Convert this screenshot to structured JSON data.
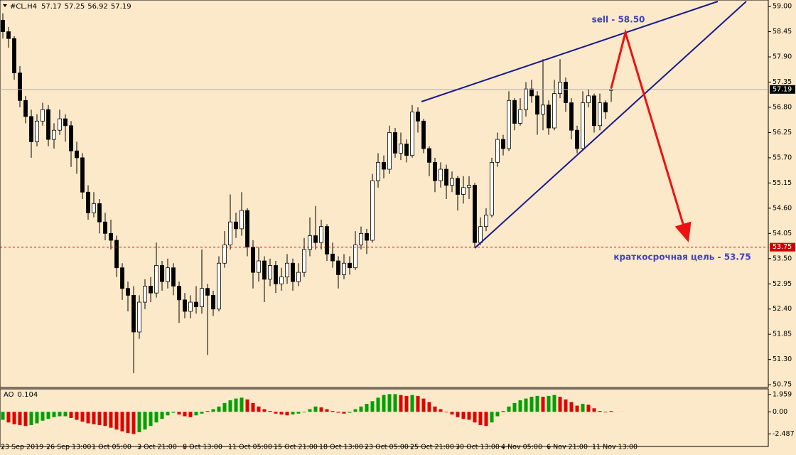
{
  "chart_data": [
    {
      "type": "candlestick",
      "title": "#CL,H4",
      "up_color": "#ffffff",
      "down_color": "#000000",
      "edge_color": "#000000",
      "categories": [
        "23 Sep 2019",
        null,
        null,
        null,
        null,
        null,
        null,
        null,
        "26 Sep 13:00",
        null,
        null,
        null,
        null,
        null,
        null,
        null,
        "1 Oct 05:00",
        null,
        null,
        null,
        null,
        null,
        null,
        null,
        "3 Oct 21:00",
        null,
        null,
        null,
        null,
        null,
        null,
        null,
        "8 Oct 13:00",
        null,
        null,
        null,
        null,
        null,
        null,
        null,
        "11 Oct 05:00",
        null,
        null,
        null,
        null,
        null,
        null,
        null,
        "15 Oct 21:00",
        null,
        null,
        null,
        null,
        null,
        null,
        null,
        "18 Oct 13:00",
        null,
        null,
        null,
        null,
        null,
        null,
        null,
        "23 Oct 05:00",
        null,
        null,
        null,
        null,
        null,
        null,
        null,
        "25 Oct 21:00",
        null,
        null,
        null,
        null,
        null,
        null,
        null,
        "30 Oct 13:00",
        null,
        null,
        null,
        null,
        null,
        null,
        null,
        "4 Nov 05:00",
        null,
        null,
        null,
        null,
        null,
        null,
        null,
        "6 Nov 21:00",
        null,
        null,
        null,
        null,
        null,
        null,
        null,
        "11 Nov 13:00",
        null,
        null,
        null
      ],
      "open": [
        58.7,
        58.45,
        58.3,
        57.55,
        56.95,
        56.6,
        56.05,
        56.5,
        56.75,
        56.1,
        56.3,
        56.55,
        56.4,
        55.85,
        55.7,
        54.95,
        54.5,
        54.7,
        54.3,
        54.05,
        53.9,
        53.3,
        52.85,
        52.7,
        51.9,
        52.55,
        52.9,
        52.75,
        53.35,
        53.0,
        53.3,
        52.9,
        52.6,
        52.35,
        52.55,
        52.45,
        52.85,
        52.7,
        52.4,
        53.4,
        53.8,
        54.3,
        54.15,
        54.55,
        53.75,
        53.2,
        53.45,
        53.05,
        53.35,
        52.95,
        53.1,
        53.4,
        53.0,
        53.2,
        53.7,
        54.0,
        53.85,
        54.2,
        53.6,
        53.45,
        53.15,
        53.4,
        53.3,
        53.8,
        54.05,
        53.9,
        55.2,
        55.6,
        55.45,
        56.25,
        55.8,
        56.0,
        55.75,
        56.7,
        56.5,
        55.9,
        55.6,
        55.2,
        55.45,
        55.1,
        55.25,
        54.9,
        55.05,
        55.1,
        53.85,
        54.2,
        54.45,
        55.6,
        56.1,
        55.9,
        56.95,
        56.45,
        56.75,
        57.2,
        57.05,
        56.65,
        56.85,
        56.35,
        57.1,
        57.35,
        56.9,
        56.3,
        55.9,
        56.9,
        57.05,
        56.4,
        56.9,
        57.17
      ],
      "high": [
        58.85,
        58.55,
        58.35,
        57.7,
        57.05,
        56.75,
        56.65,
        56.9,
        56.85,
        56.45,
        56.75,
        56.65,
        56.5,
        56.05,
        55.8,
        55.1,
        54.95,
        54.8,
        54.5,
        54.35,
        54.0,
        53.4,
        53.0,
        52.9,
        52.7,
        53.05,
        53.1,
        53.85,
        53.45,
        53.5,
        53.4,
        53.0,
        52.75,
        52.7,
        52.9,
        53.7,
        52.95,
        52.8,
        53.55,
        54.1,
        54.9,
        54.5,
        54.95,
        54.6,
        53.9,
        53.75,
        53.55,
        53.5,
        53.45,
        53.3,
        53.6,
        53.5,
        53.4,
        53.95,
        54.4,
        54.65,
        54.35,
        54.25,
        53.85,
        53.55,
        53.6,
        53.55,
        54.1,
        54.2,
        54.15,
        55.35,
        55.8,
        55.75,
        56.4,
        56.35,
        56.25,
        56.1,
        56.85,
        56.8,
        56.55,
        55.95,
        55.7,
        55.6,
        55.55,
        55.4,
        55.3,
        55.3,
        55.3,
        55.15,
        54.4,
        54.6,
        55.7,
        56.25,
        56.2,
        57.15,
        57.0,
        57.0,
        57.35,
        57.4,
        57.15,
        57.85,
        56.95,
        57.4,
        57.85,
        57.45,
        57.0,
        56.4,
        57.15,
        57.2,
        57.1,
        57.1,
        56.95,
        57.25
      ],
      "low": [
        58.3,
        58.1,
        57.4,
        56.8,
        56.45,
        55.7,
        55.95,
        56.4,
        55.95,
        55.9,
        56.2,
        56.05,
        55.5,
        55.35,
        54.8,
        54.35,
        54.4,
        54.05,
        53.9,
        53.7,
        53.1,
        52.6,
        52.35,
        51.0,
        51.75,
        52.4,
        52.55,
        52.65,
        52.8,
        52.85,
        52.7,
        52.1,
        52.2,
        52.2,
        52.3,
        52.3,
        51.4,
        52.25,
        52.35,
        53.3,
        53.7,
        53.95,
        54.0,
        53.55,
        52.85,
        53.0,
        52.55,
        52.9,
        52.75,
        52.8,
        52.95,
        52.8,
        52.9,
        53.1,
        53.55,
        53.7,
        53.7,
        53.45,
        53.3,
        52.85,
        53.05,
        53.15,
        53.25,
        53.7,
        53.6,
        53.85,
        55.05,
        55.25,
        55.35,
        55.7,
        55.65,
        55.6,
        55.7,
        56.25,
        55.8,
        55.3,
        54.95,
        55.05,
        54.8,
        54.95,
        54.55,
        54.7,
        54.8,
        53.75,
        53.8,
        54.1,
        54.4,
        55.5,
        55.75,
        55.85,
        56.3,
        56.4,
        56.6,
        56.9,
        56.2,
        56.3,
        56.2,
        56.3,
        57.0,
        56.7,
        56.1,
        55.8,
        55.85,
        56.8,
        56.25,
        56.3,
        56.55,
        56.92
      ],
      "close": [
        58.45,
        58.3,
        57.55,
        56.95,
        56.6,
        56.05,
        56.5,
        56.75,
        56.1,
        56.3,
        56.55,
        56.4,
        55.85,
        55.7,
        54.95,
        54.5,
        54.7,
        54.3,
        54.05,
        53.9,
        53.3,
        52.85,
        52.7,
        51.9,
        52.55,
        52.9,
        52.75,
        53.35,
        53.0,
        53.3,
        52.9,
        52.6,
        52.35,
        52.55,
        52.45,
        52.85,
        52.7,
        52.4,
        53.4,
        53.8,
        54.3,
        54.15,
        54.55,
        53.75,
        53.2,
        53.45,
        53.05,
        53.35,
        52.95,
        53.1,
        53.4,
        53.0,
        53.2,
        53.7,
        54.0,
        53.85,
        54.2,
        53.6,
        53.45,
        53.15,
        53.4,
        53.3,
        53.8,
        54.05,
        53.9,
        55.2,
        55.6,
        55.45,
        56.25,
        55.8,
        56.0,
        55.75,
        56.7,
        56.5,
        55.9,
        55.6,
        55.2,
        55.45,
        55.1,
        55.25,
        54.9,
        55.05,
        55.1,
        53.85,
        54.2,
        54.45,
        55.6,
        56.1,
        55.9,
        56.95,
        56.45,
        56.75,
        57.2,
        57.05,
        56.65,
        56.85,
        56.35,
        57.1,
        57.35,
        56.9,
        56.3,
        55.9,
        56.9,
        57.05,
        56.4,
        56.9,
        56.7,
        57.19
      ],
      "ylim": [
        50.69,
        59.11
      ],
      "yticks": [
        {
          "value": 59,
          "label": "59.00"
        },
        {
          "value": 58.45,
          "label": "58.45"
        },
        {
          "value": 57.9,
          "label": "57.90"
        },
        {
          "value": 57.35,
          "label": "57.35"
        },
        {
          "value": 56.8,
          "label": "56.80"
        },
        {
          "value": 56.25,
          "label": "56.25"
        },
        {
          "value": 55.7,
          "label": "55.70"
        },
        {
          "value": 55.15,
          "label": "55.15"
        },
        {
          "value": 54.6,
          "label": "54.60"
        },
        {
          "value": 54.05,
          "label": "54.05"
        },
        {
          "value": 53.5,
          "label": "53.50"
        },
        {
          "value": 52.95,
          "label": "52.95"
        },
        {
          "value": 52.4,
          "label": "52.40"
        },
        {
          "value": 51.85,
          "label": "51.85"
        },
        {
          "value": 51.3,
          "label": "51.30"
        },
        {
          "value": 50.75,
          "label": "50.75"
        }
      ],
      "level": 53.75,
      "level_color": "#d00000",
      "annotations": [
        "sell - 58.50",
        "краткосрочная цель - 53.75"
      ]
    },
    {
      "type": "bar",
      "title": "AO",
      "up_color": "#00a000",
      "down_color": "#e00000",
      "values": [
        -0.9,
        -1.2,
        -1.4,
        -1.5,
        -1.6,
        -1.5,
        -1.3,
        -1.0,
        -0.8,
        -0.6,
        -0.5,
        -0.5,
        -0.7,
        -0.9,
        -1.1,
        -1.3,
        -1.4,
        -1.5,
        -1.6,
        -1.8,
        -2.0,
        -2.2,
        -2.4,
        -2.5,
        -2.3,
        -2.0,
        -1.6,
        -1.2,
        -0.8,
        -0.4,
        -0.1,
        -0.3,
        -0.5,
        -0.6,
        -0.4,
        -0.2,
        0.1,
        0.3,
        0.6,
        1.0,
        1.3,
        1.5,
        1.6,
        1.4,
        1.0,
        0.6,
        0.3,
        0.1,
        -0.2,
        -0.3,
        -0.4,
        -0.3,
        -0.2,
        0.0,
        0.3,
        0.6,
        0.5,
        0.3,
        0.1,
        -0.1,
        -0.2,
        -0.1,
        0.3,
        0.6,
        0.9,
        1.2,
        1.6,
        1.9,
        2.0,
        2.0,
        1.9,
        1.8,
        1.9,
        1.8,
        1.5,
        1.1,
        0.6,
        0.3,
        0.0,
        -0.3,
        -0.6,
        -0.8,
        -0.9,
        -1.2,
        -1.5,
        -1.6,
        -1.2,
        -0.5,
        0.1,
        0.6,
        1.0,
        1.3,
        1.5,
        1.7,
        1.8,
        1.7,
        1.8,
        1.9,
        1.7,
        1.4,
        1.1,
        0.7,
        0.9,
        0.8,
        0.4,
        0.1,
        0.0,
        0.104
      ],
      "ylim": [
        -3.75,
        2.43
      ],
      "yticks": [
        1.959,
        {
          "value": 0,
          "label": "0.00"
        },
        -2.487
      ]
    }
  ]
}
